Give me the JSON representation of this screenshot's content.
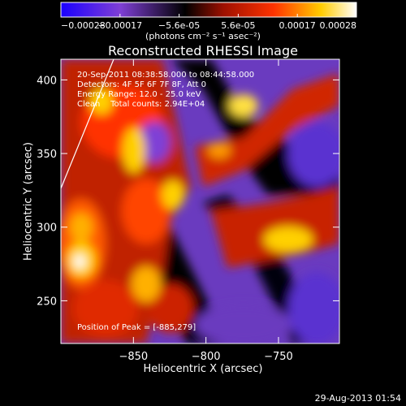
{
  "chart_data": {
    "type": "heatmap",
    "title": "Reconstructed RHESSI Image",
    "xlabel": "Heliocentric X (arcsec)",
    "ylabel": "Heliocentric Y (arcsec)",
    "xlim": [
      -900,
      -708
    ],
    "ylim": [
      221,
      414
    ],
    "x_ticks": [
      -850,
      -800,
      -750
    ],
    "y_ticks": [
      250,
      300,
      350,
      400
    ],
    "colorbar": {
      "range": [
        -0.00028,
        0.00028
      ],
      "ticks": [
        "-0.00028",
        "-0.00017",
        "-5.6e-05",
        "5.6e-05",
        "0.00017",
        "0.00028"
      ],
      "unit_label": "(photons cm⁻² s⁻¹ asec⁻²)",
      "colormap": [
        "#1a00ff",
        "#7f3fd6",
        "#000000",
        "#9e1000",
        "#ff3300",
        "#ffcc00",
        "#ffffff"
      ]
    },
    "annotations": [
      "20-Sep-2011 08:38:58.000 to 08:44:58.000",
      "Detectors: 4F 5F 6F 7F 8F, Att 0",
      "Energy Range: 12.0 - 25.0 keV",
      "Clean    Total counts: 2.94E+04"
    ],
    "peak_label": "Position of Peak = [-885,279]",
    "peak": [
      -885,
      279
    ]
  },
  "timestamp": "29-Aug-2013 01:54"
}
